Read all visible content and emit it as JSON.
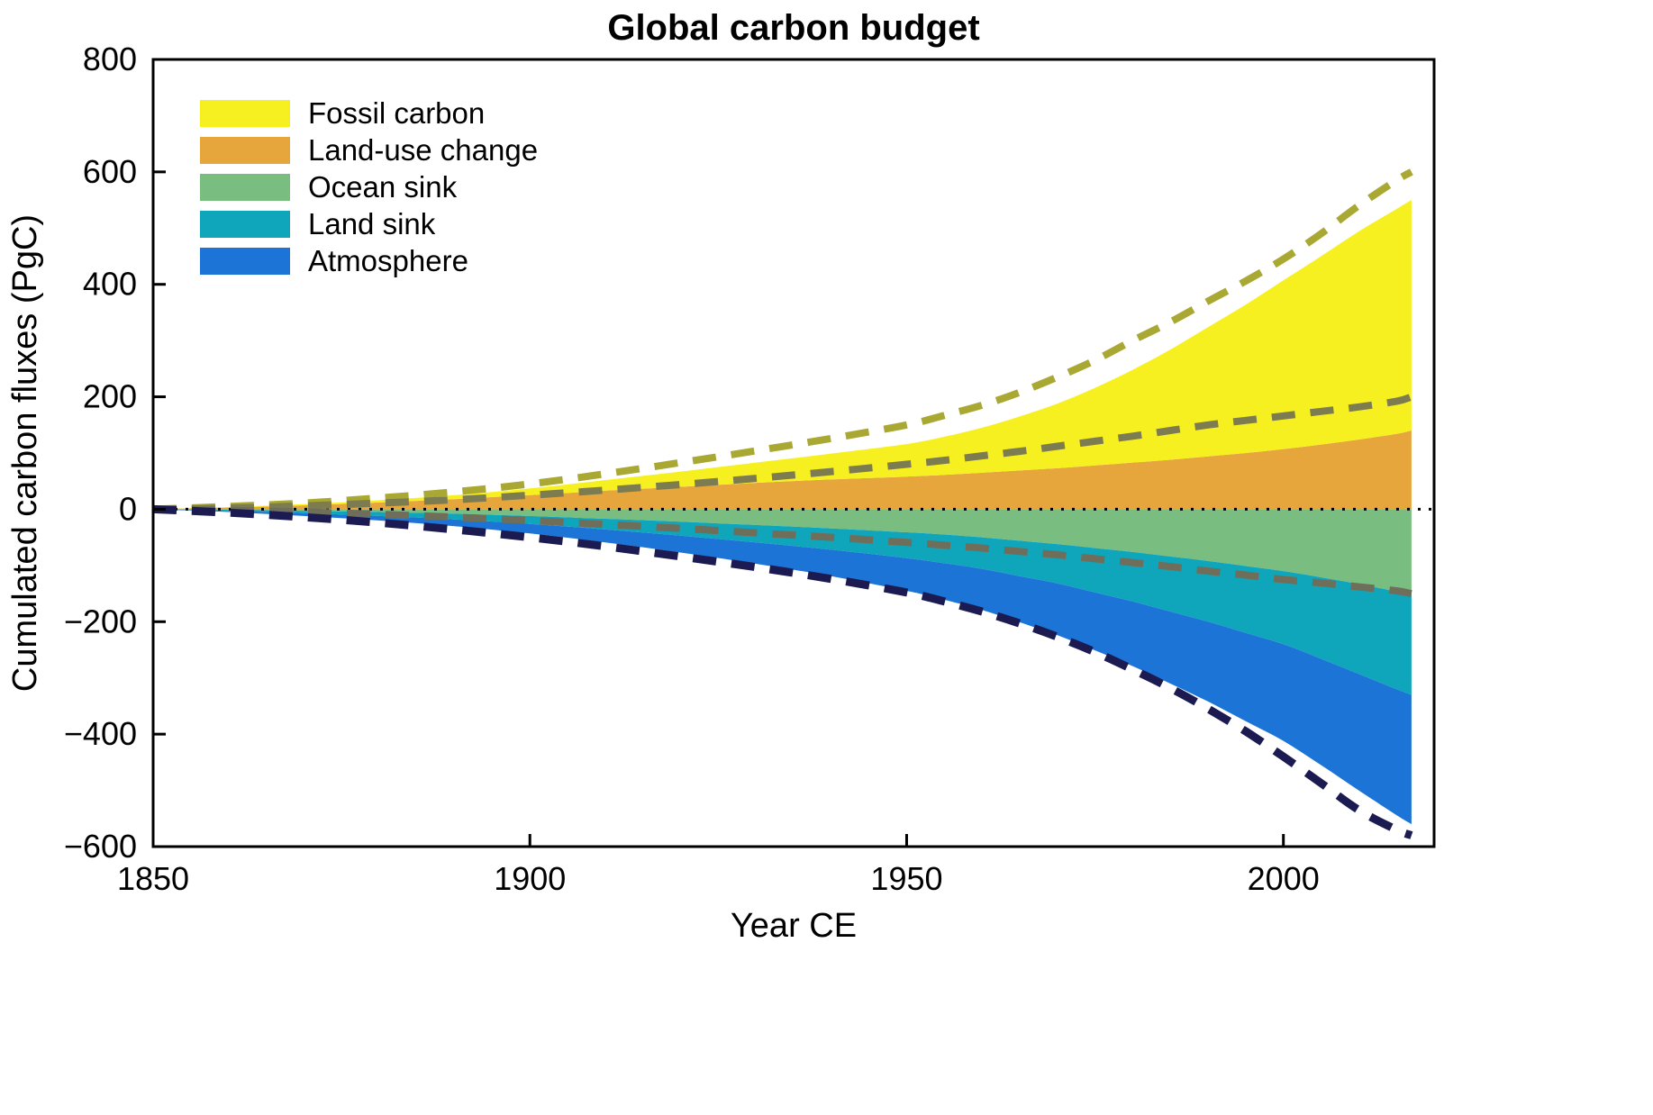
{
  "chart_data": {
    "type": "area",
    "title": "Global carbon budget",
    "xlabel": "Year CE",
    "ylabel": "Cumulated carbon fluxes (PgC)",
    "xlim": [
      1850,
      2020
    ],
    "ylim": [
      -600,
      800
    ],
    "xticks": [
      1850,
      1900,
      1950,
      2000
    ],
    "yticks": [
      800,
      600,
      400,
      200,
      0,
      -200,
      -400,
      -600
    ],
    "grid": false,
    "legend_position": "top-left-inside",
    "x": [
      1850,
      1860,
      1870,
      1880,
      1890,
      1900,
      1910,
      1920,
      1930,
      1940,
      1950,
      1955,
      1960,
      1965,
      1970,
      1975,
      1980,
      1985,
      1990,
      1995,
      2000,
      2005,
      2010,
      2015,
      2017
    ],
    "series": [
      {
        "name": "land_use",
        "label": "Land-use change",
        "color": "#E6A63C",
        "sign": 1,
        "values": [
          0,
          3,
          7,
          12,
          18,
          25,
          33,
          40,
          47,
          53,
          58,
          61,
          65,
          69,
          73,
          78,
          83,
          88,
          94,
          100,
          107,
          115,
          124,
          134,
          140
        ]
      },
      {
        "name": "fossil",
        "label": "Fossil carbon",
        "color": "#F7F021",
        "sign": 1,
        "values": [
          0,
          1,
          2,
          4,
          7,
          12,
          19,
          27,
          36,
          46,
          58,
          68,
          80,
          96,
          115,
          138,
          165,
          196,
          230,
          264,
          300,
          335,
          370,
          400,
          410
        ]
      },
      {
        "name": "ocean",
        "label": "Ocean sink",
        "color": "#79BD80",
        "sign": -1,
        "values": [
          0,
          1,
          3,
          5,
          8,
          12,
          17,
          22,
          28,
          34,
          41,
          45,
          50,
          56,
          62,
          69,
          76,
          84,
          92,
          101,
          110,
          121,
          133,
          146,
          150
        ]
      },
      {
        "name": "land_sink",
        "label": "Land sink",
        "color": "#0FA6BC",
        "sign": -1,
        "values": [
          0,
          2,
          4,
          7,
          10,
          14,
          19,
          25,
          31,
          38,
          46,
          51,
          56,
          63,
          70,
          79,
          88,
          98,
          108,
          119,
          130,
          145,
          160,
          174,
          180
        ]
      },
      {
        "name": "atmosphere",
        "label": "Atmosphere",
        "color": "#1B74D6",
        "sign": -1,
        "values": [
          0,
          2,
          5,
          8,
          12,
          17,
          23,
          30,
          38,
          47,
          58,
          65,
          73,
          82,
          92,
          103,
          115,
          128,
          142,
          157,
          172,
          189,
          207,
          224,
          230
        ]
      }
    ],
    "legend_order": [
      "fossil",
      "land_use",
      "ocean",
      "land_sink",
      "atmosphere"
    ],
    "dashed_lines": [
      {
        "name": "total-emissions-upper",
        "color": "#A9A833",
        "width": 8,
        "values": [
          0,
          5,
          11,
          20,
          31,
          45,
          63,
          83,
          104,
          126,
          150,
          167,
          185,
          208,
          235,
          265,
          300,
          333,
          370,
          406,
          445,
          490,
          540,
          585,
          600
        ]
      },
      {
        "name": "emissions-inner",
        "color": "#7C7C50",
        "width": 8,
        "values": [
          0,
          2,
          6,
          11,
          17,
          25,
          34,
          44,
          55,
          67,
          80,
          87,
          95,
          103,
          112,
          121,
          130,
          140,
          150,
          158,
          166,
          174,
          182,
          192,
          200
        ]
      },
      {
        "name": "sink-inner",
        "color": "#6E6E5A",
        "width": 8,
        "values": [
          0,
          -2,
          -5,
          -9,
          -14,
          -20,
          -27,
          -34,
          -42,
          -50,
          -59,
          -64,
          -69,
          -75,
          -81,
          -88,
          -95,
          -102,
          -110,
          -117,
          -125,
          -131,
          -138,
          -145,
          -150
        ]
      },
      {
        "name": "total-sinks-lower",
        "color": "#1B1B52",
        "width": 9,
        "values": [
          0,
          -6,
          -14,
          -24,
          -36,
          -50,
          -66,
          -84,
          -103,
          -124,
          -148,
          -164,
          -182,
          -203,
          -227,
          -254,
          -285,
          -318,
          -355,
          -395,
          -440,
          -487,
          -535,
          -570,
          -580
        ]
      }
    ],
    "zero_line": {
      "style": "dotted",
      "color": "#000000"
    }
  }
}
